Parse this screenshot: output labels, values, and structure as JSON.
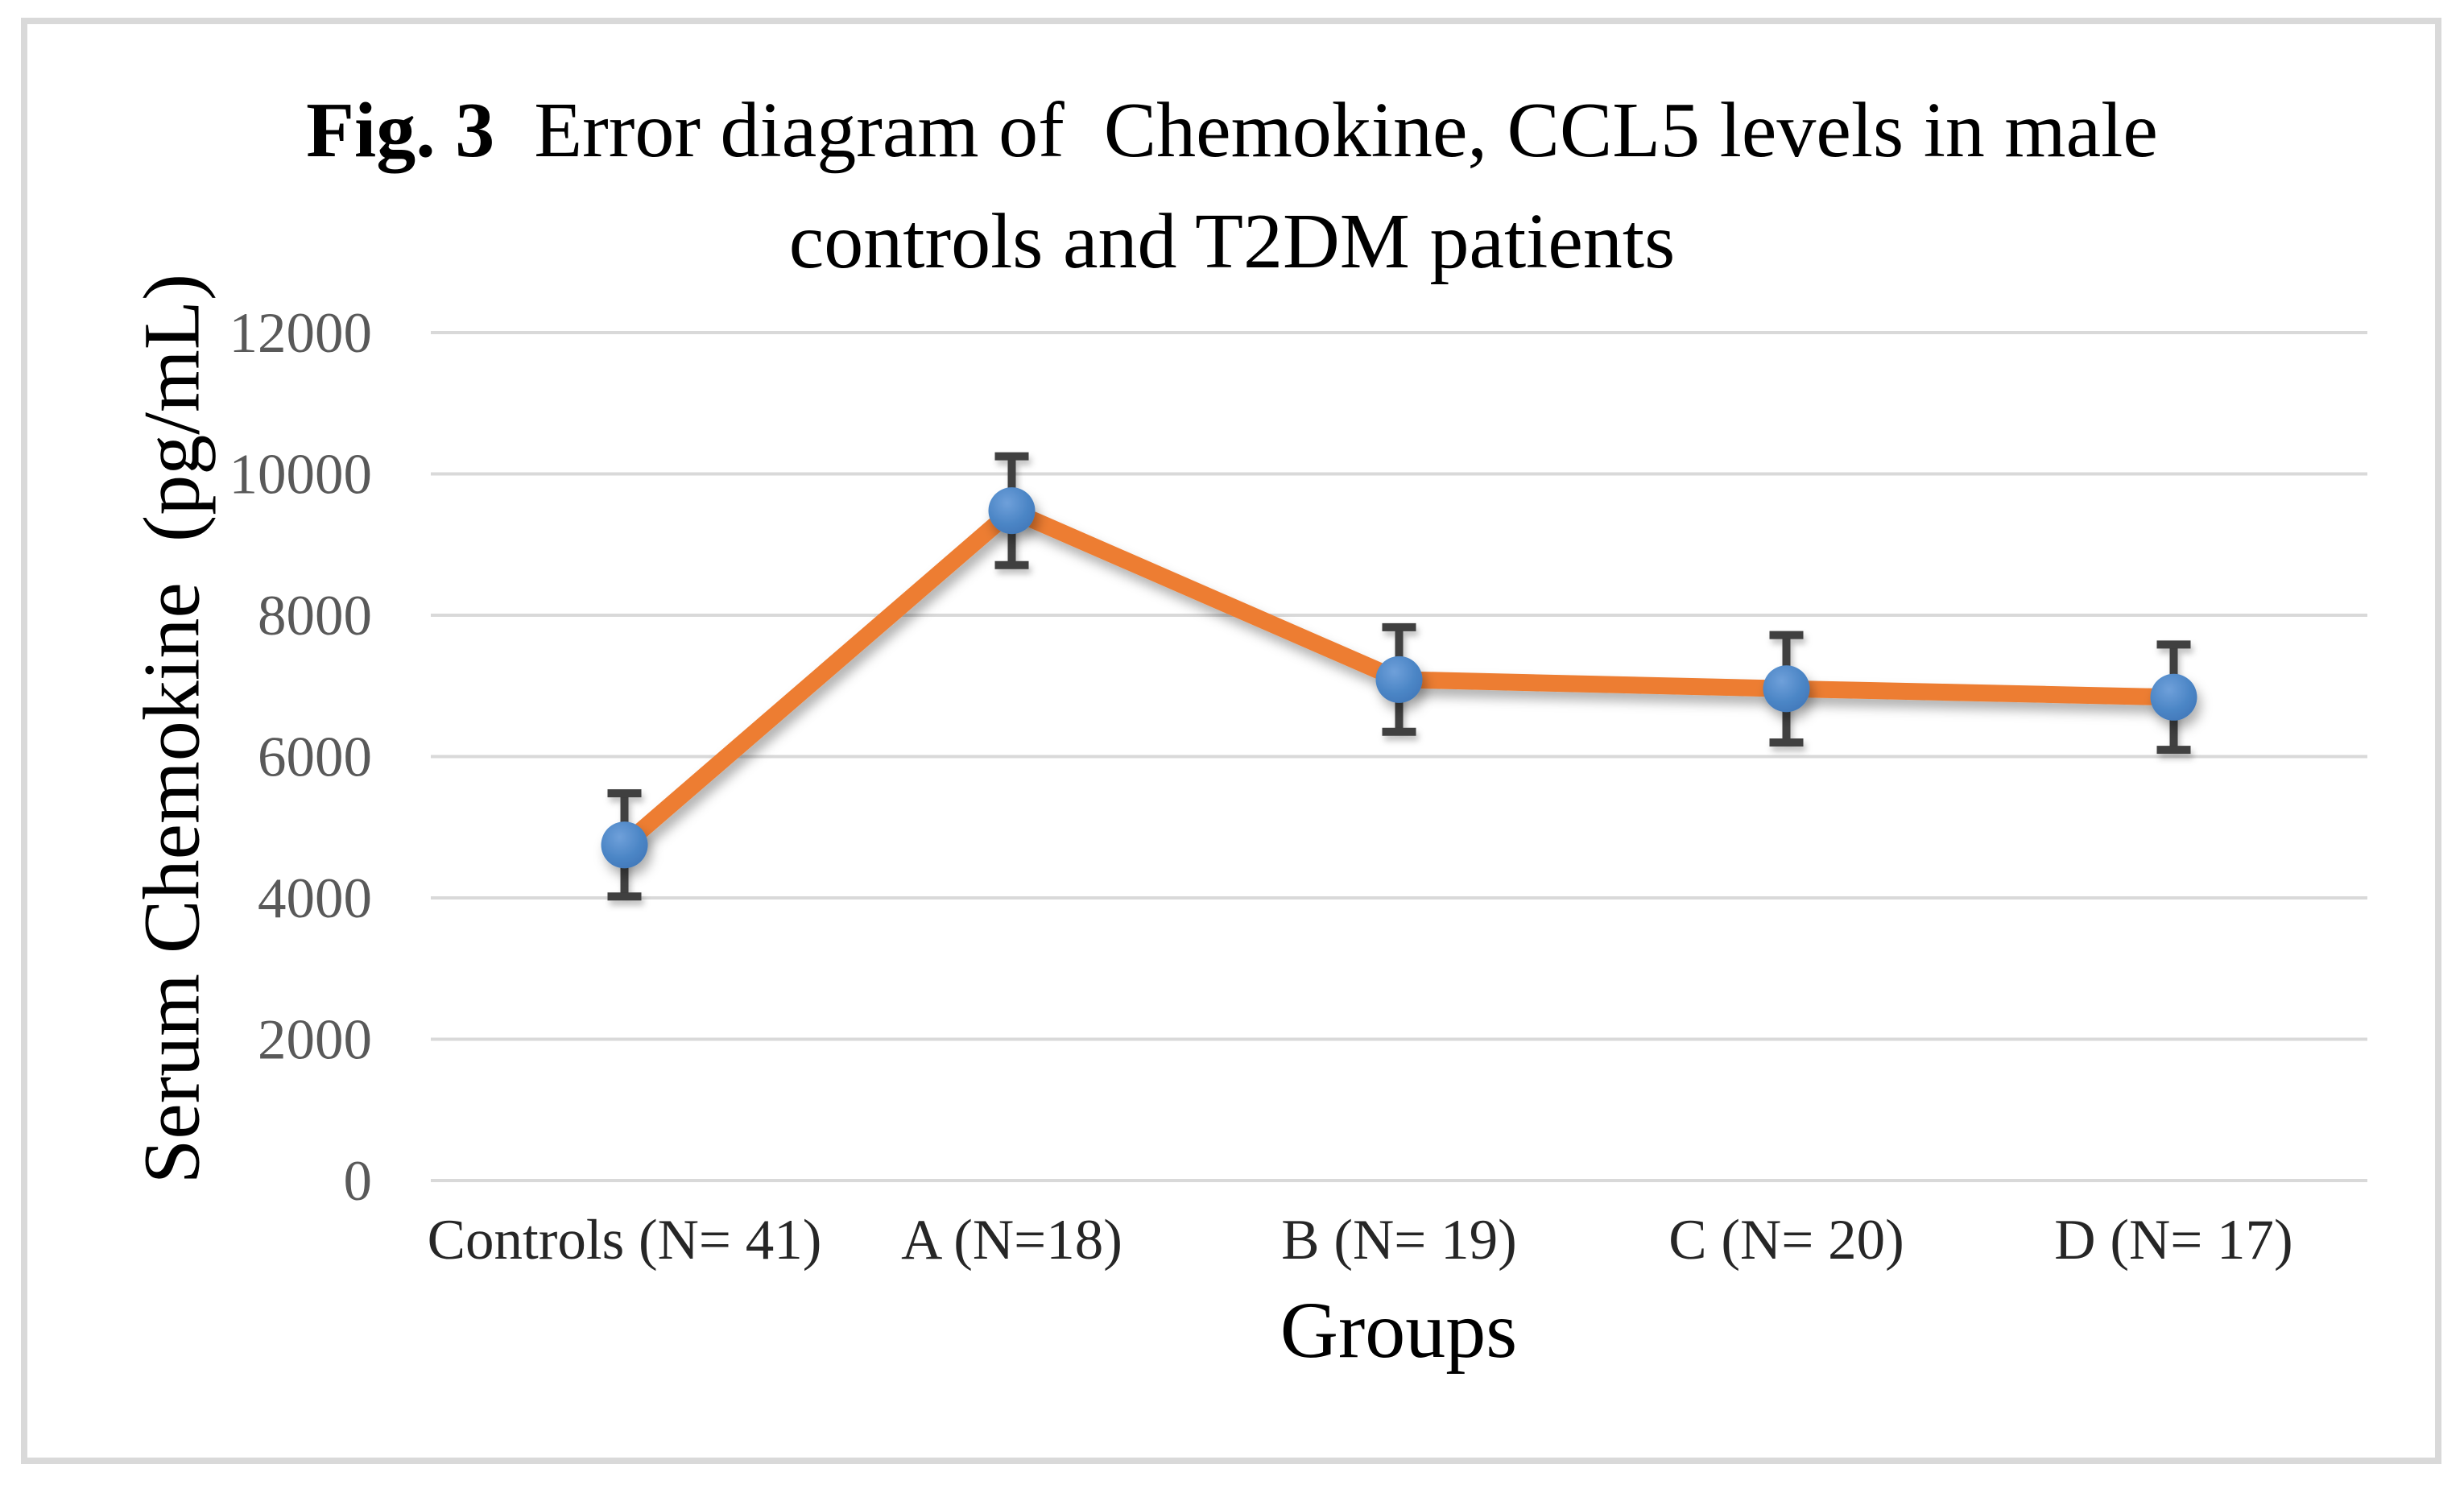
{
  "figure": {
    "title": {
      "prefix": "Fig. 3",
      "line1_rest": "  Error diagram of  Chemokine, CCL5 levels in male",
      "line2": "controls and T2DM patients"
    }
  },
  "chart_data": {
    "type": "line",
    "title": "Fig. 3 Error diagram of Chemokine, CCL5 levels in male controls and T2DM patients",
    "xlabel": "Groups",
    "ylabel": "Serum Chemokine  (pg/mL)",
    "categories": [
      "Controls (N= 41)",
      "A (N=18)",
      "B (N= 19)",
      "C (N= 20)",
      "D (N= 17)"
    ],
    "series": [
      {
        "values": [
          4750,
          9480,
          7090,
          6960,
          6840
        ],
        "error_plus": [
          730,
          770,
          740,
          760,
          745
        ],
        "error_minus": [
          730,
          770,
          740,
          760,
          745
        ]
      }
    ],
    "ylim": [
      0,
      12000
    ],
    "yticks": [
      0,
      2000,
      4000,
      6000,
      8000,
      10000,
      12000
    ],
    "grid": true,
    "legend": "none",
    "marker": "circle",
    "colors": {
      "line": "#ED7D31",
      "marker": "#4C86C6",
      "marker_light": "#6FA0DA",
      "marker_dark": "#4077B9",
      "error_bar": "#3F3F3F",
      "gridline": "#D9D9D9",
      "border": "#D9D9D9",
      "ytick_label": "#595959",
      "xtick_label": "#262626",
      "text": "#000000"
    }
  }
}
